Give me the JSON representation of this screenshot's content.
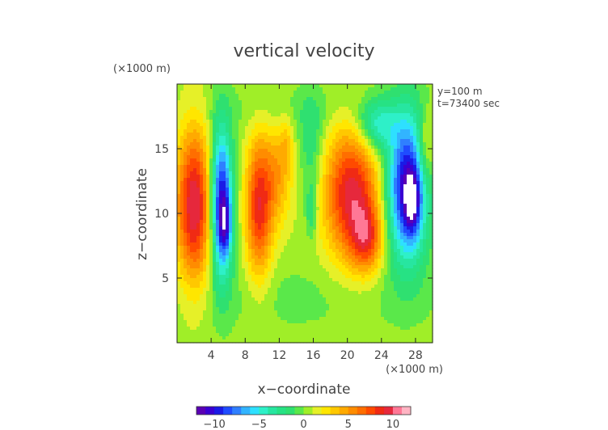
{
  "chart_data": {
    "type": "heatmap",
    "title": "vertical velocity",
    "xlabel": "x−coordinate",
    "ylabel": "z−coordinate",
    "x_unit": "(×1000 m)",
    "y_unit": "(×1000 m)",
    "info_lines": [
      "y=100 m",
      "t=73400 sec"
    ],
    "xlim": [
      0,
      30
    ],
    "ylim": [
      0,
      20
    ],
    "x_ticks": [
      4,
      8,
      12,
      16,
      20,
      24,
      28
    ],
    "y_ticks": [
      5,
      10,
      15
    ],
    "x_tick_labels": [
      "4",
      "8",
      "12",
      "16",
      "20",
      "24",
      "28"
    ],
    "y_tick_labels": [
      "5",
      "10",
      "15"
    ],
    "colorbar": {
      "range": [
        -12,
        12
      ],
      "step": 1,
      "tick_values": [
        -10,
        -5,
        0,
        5,
        10
      ],
      "tick_labels": [
        "−10",
        "−5",
        "0",
        "5",
        "10"
      ]
    },
    "palette": [
      "#5a00b4",
      "#3a00d2",
      "#1a1ae6",
      "#1f4cff",
      "#2f7fff",
      "#32b4ff",
      "#2ee0ff",
      "#2ef0c8",
      "#27e6a0",
      "#26e284",
      "#2fe070",
      "#5ae84a",
      "#a0ee28",
      "#e6f028",
      "#ffe600",
      "#ffc800",
      "#ffaa00",
      "#ff8c00",
      "#ff6e00",
      "#ff4a00",
      "#f02a14",
      "#e6283c",
      "#ff7896",
      "#ffb4c3"
    ],
    "field_background": 0.5,
    "features": [
      {
        "x": 2.0,
        "z": 10.6,
        "sx": 1.5,
        "sz": 4.2,
        "amp": 9.5
      },
      {
        "x": 5.2,
        "z": 10.8,
        "sx": 0.9,
        "sz": 4.0,
        "amp": -11.5
      },
      {
        "x": 5.7,
        "z": 9.0,
        "sx": 0.5,
        "sz": 1.5,
        "amp": -4.0
      },
      {
        "x": 9.6,
        "z": 10.5,
        "sx": 1.1,
        "sz": 3.8,
        "amp": 8.0
      },
      {
        "x": 11.8,
        "z": 12.8,
        "sx": 1.2,
        "sz": 2.8,
        "amp": 3.8
      },
      {
        "x": 12.8,
        "z": 15.5,
        "sx": 0.6,
        "sz": 1.6,
        "amp": 2.0
      },
      {
        "x": 15.8,
        "z": 15.2,
        "sx": 1.0,
        "sz": 2.6,
        "amp": -2.6
      },
      {
        "x": 15.8,
        "z": 10.2,
        "sx": 0.5,
        "sz": 1.5,
        "amp": -3.0
      },
      {
        "x": 20.5,
        "z": 11.5,
        "sx": 2.3,
        "sz": 3.6,
        "amp": 9.0
      },
      {
        "x": 22.3,
        "z": 8.0,
        "sx": 1.3,
        "sz": 1.8,
        "amp": 5.5
      },
      {
        "x": 23.3,
        "z": 16.8,
        "sx": 1.5,
        "sz": 1.4,
        "amp": -5.0
      },
      {
        "x": 27.0,
        "z": 12.0,
        "sx": 1.7,
        "sz": 4.0,
        "amp": -11.5
      },
      {
        "x": 27.6,
        "z": 10.8,
        "sx": 0.6,
        "sz": 1.6,
        "amp": -5.0
      },
      {
        "x": 29.2,
        "z": 15.2,
        "sx": 0.7,
        "sz": 2.0,
        "amp": 3.5
      },
      {
        "x": 15.0,
        "z": 18.0,
        "sx": 9.0,
        "sz": 1.4,
        "amp": -0.9
      },
      {
        "x": 15.0,
        "z": 3.5,
        "sx": 12.0,
        "sz": 2.0,
        "amp": -0.8
      }
    ]
  }
}
